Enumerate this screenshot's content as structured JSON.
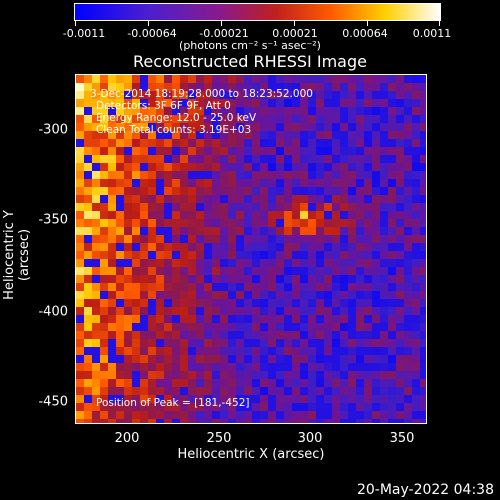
{
  "colorbar": {
    "ticks": [
      "-0.0011",
      "-0.00064",
      "-0.00021",
      "0.00021",
      "0.00064",
      "0.0011"
    ],
    "units": "(photons cm⁻² s⁻¹ asec⁻²)"
  },
  "plot": {
    "title": "Reconstructed RHESSI Image",
    "annotations": {
      "time_range": "3-Dec-2014 18:19:28.000 to 18:23:52.000",
      "detectors": "Detectors: 3F 6F 9F, Att 0",
      "energy": "Energy Range: 12.0 - 25.0 keV",
      "method": "Clean      Total counts: 3.19E+03",
      "peak": "Position of Peak = [181,-452]"
    },
    "x_axis": {
      "title": "Heliocentric X (arcsec)",
      "ticks": [
        "200",
        "250",
        "300",
        "350"
      ]
    },
    "y_axis": {
      "title": "Heliocentric Y (arcsec)",
      "ticks": [
        "-300",
        "-350",
        "-400",
        "-450"
      ]
    }
  },
  "footer": {
    "timestamp": "20-May-2022 04:38"
  }
}
